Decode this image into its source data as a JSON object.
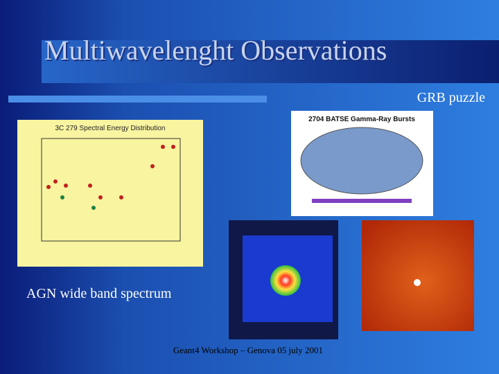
{
  "slide": {
    "title": "Multiwavelenght Observations",
    "subtitle": "GRB puzzle",
    "caption": "AGN wide band spectrum",
    "footer": "Geant4 Workshop – Genova 05 july 2001",
    "figures": {
      "sed_title": "3C 279 Spectral Energy Distribution",
      "batse_title": "2704 BATSE Gamma-Ray Bursts"
    }
  }
}
